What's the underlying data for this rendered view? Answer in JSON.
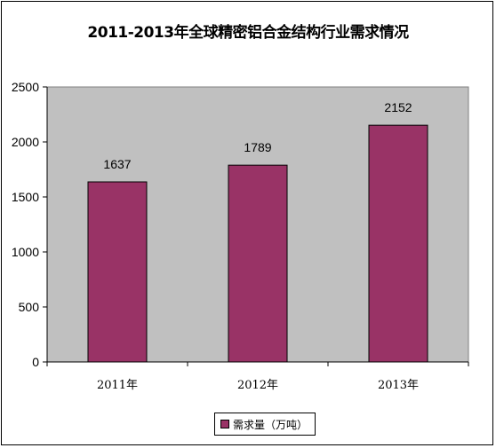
{
  "chart_data": {
    "type": "bar",
    "title": "2011-2013年全球精密铝合金结构行业需求情况",
    "categories": [
      "2011年",
      "2012年",
      "2013年"
    ],
    "series": [
      {
        "name": "需求量（万吨）",
        "values": [
          1637,
          1789,
          2152
        ]
      }
    ],
    "data_labels": [
      "1637",
      "1789",
      "2152"
    ],
    "ylim": [
      0,
      2500
    ],
    "yticks": [
      0,
      500,
      1000,
      1500,
      2000,
      2500
    ],
    "ytick_labels": [
      "0",
      "500",
      "1000",
      "1500",
      "2000",
      "2500"
    ],
    "grid": false,
    "legend_position": "bottom",
    "colors": {
      "bar": "#993366",
      "plot_bg": "#c0c0c0"
    }
  }
}
